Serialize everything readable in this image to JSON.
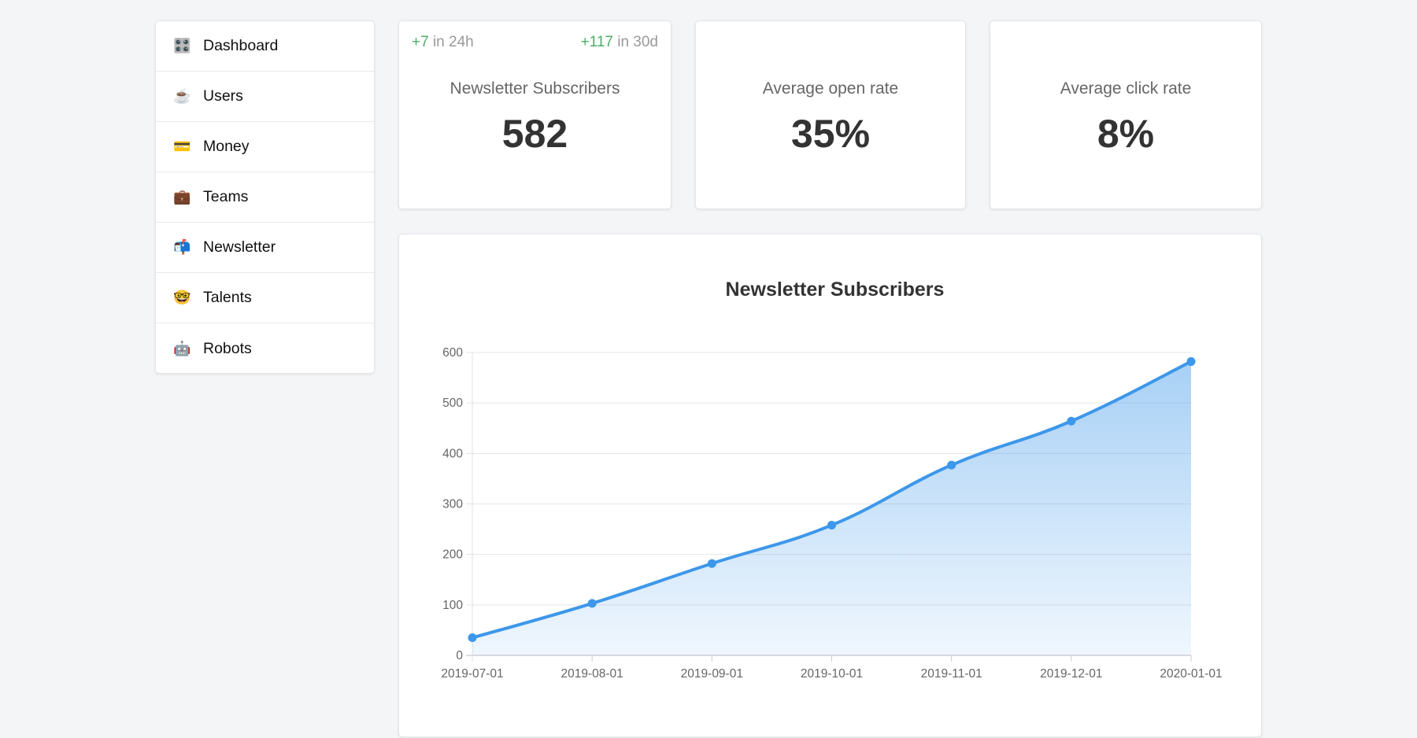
{
  "sidebar": {
    "items": [
      {
        "label": "Dashboard",
        "icon": "🎛️",
        "icon_name": "control-knobs-icon"
      },
      {
        "label": "Users",
        "icon": "☕",
        "icon_name": "coffee-icon"
      },
      {
        "label": "Money",
        "icon": "💳",
        "icon_name": "credit-card-icon"
      },
      {
        "label": "Teams",
        "icon": "💼",
        "icon_name": "briefcase-icon"
      },
      {
        "label": "Newsletter",
        "icon": "📬",
        "icon_name": "mailbox-icon"
      },
      {
        "label": "Talents",
        "icon": "🤓",
        "icon_name": "nerd-face-icon"
      },
      {
        "label": "Robots",
        "icon": "🤖",
        "icon_name": "robot-icon"
      }
    ]
  },
  "stats": {
    "subscribers": {
      "trend_24h_value": "+7",
      "trend_24h_label": " in 24h",
      "trend_30d_value": "+117",
      "trend_30d_label": " in 30d",
      "label": "Newsletter Subscribers",
      "value": "582"
    },
    "open_rate": {
      "label": "Average open rate",
      "value": "35%"
    },
    "click_rate": {
      "label": "Average click rate",
      "value": "8%"
    }
  },
  "colors": {
    "line": "#3d97ea",
    "trend_up": "#4caf6a"
  },
  "chart_data": {
    "type": "area",
    "title": "Newsletter Subscribers",
    "categories": [
      "2019-07-01",
      "2019-08-01",
      "2019-09-01",
      "2019-10-01",
      "2019-11-01",
      "2019-12-01",
      "2020-01-01"
    ],
    "series": [
      {
        "name": "Newsletter Subscribers",
        "values": [
          35,
          103,
          182,
          258,
          377,
          464,
          582
        ]
      }
    ],
    "yticks": [
      "0",
      "100",
      "200",
      "300",
      "400",
      "500",
      "600"
    ],
    "ylim": [
      0,
      600
    ],
    "xlabel": "",
    "ylabel": "",
    "grid": true,
    "legend": "none"
  }
}
